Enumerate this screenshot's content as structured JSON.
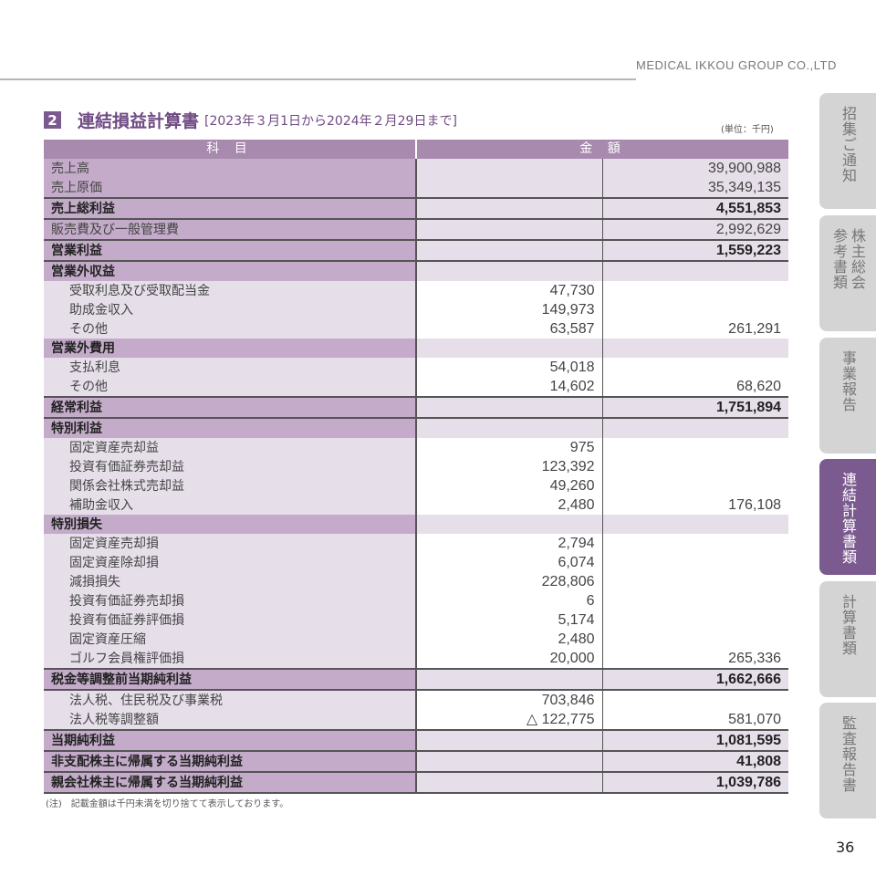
{
  "header": {
    "company": "MEDICAL IKKOU GROUP CO.,LTD"
  },
  "section": {
    "number": "2",
    "title": "連結損益計算書",
    "period": "[2023年３月1日から2024年２月29日まで]",
    "unit": "(単位：千円)"
  },
  "table": {
    "headers": [
      "科 目",
      "金 額"
    ],
    "rows": [
      {
        "type": "top",
        "label": "売上高",
        "mid": "",
        "right": "39,900,988"
      },
      {
        "type": "top",
        "label": "売上原価",
        "mid": "",
        "right": "35,349,135"
      },
      {
        "type": "top bold",
        "label": "売上総利益",
        "mid": "",
        "right": "4,551,853"
      },
      {
        "type": "top",
        "label": "販売費及び一般管理費",
        "mid": "",
        "right": "2,992,629"
      },
      {
        "type": "top bold",
        "label": "営業利益",
        "mid": "",
        "right": "1,559,223"
      },
      {
        "type": "top sec",
        "label": "営業外収益",
        "mid": "",
        "right": ""
      },
      {
        "type": "sub",
        "label": "受取利息及び受取配当金",
        "mid": "47,730",
        "right": ""
      },
      {
        "type": "sub",
        "label": "助成金収入",
        "mid": "149,973",
        "right": ""
      },
      {
        "type": "sub",
        "label": "その他",
        "mid": "63,587",
        "right": "261,291"
      },
      {
        "type": "top sec",
        "label": "営業外費用",
        "mid": "",
        "right": ""
      },
      {
        "type": "sub",
        "label": "支払利息",
        "mid": "54,018",
        "right": ""
      },
      {
        "type": "sub",
        "label": "その他",
        "mid": "14,602",
        "right": "68,620"
      },
      {
        "type": "top bold",
        "label": "経常利益",
        "mid": "",
        "right": "1,751,894"
      },
      {
        "type": "top sec",
        "label": "特別利益",
        "mid": "",
        "right": ""
      },
      {
        "type": "sub",
        "label": "固定資産売却益",
        "mid": "975",
        "right": ""
      },
      {
        "type": "sub",
        "label": "投資有価証券売却益",
        "mid": "123,392",
        "right": ""
      },
      {
        "type": "sub",
        "label": "関係会社株式売却益",
        "mid": "49,260",
        "right": ""
      },
      {
        "type": "sub",
        "label": "補助金収入",
        "mid": "2,480",
        "right": "176,108"
      },
      {
        "type": "top sec",
        "label": "特別損失",
        "mid": "",
        "right": ""
      },
      {
        "type": "sub",
        "label": "固定資産売却損",
        "mid": "2,794",
        "right": ""
      },
      {
        "type": "sub",
        "label": "固定資産除却損",
        "mid": "6,074",
        "right": ""
      },
      {
        "type": "sub",
        "label": "減損損失",
        "mid": "228,806",
        "right": ""
      },
      {
        "type": "sub",
        "label": "投資有価証券売却損",
        "mid": "6",
        "right": ""
      },
      {
        "type": "sub",
        "label": "投資有価証券評価損",
        "mid": "5,174",
        "right": ""
      },
      {
        "type": "sub",
        "label": "固定資産圧縮",
        "mid": "2,480",
        "right": ""
      },
      {
        "type": "sub",
        "label": "ゴルフ会員権評価損",
        "mid": "20,000",
        "right": "265,336"
      },
      {
        "type": "top bold",
        "label": "税金等調整前当期純利益",
        "mid": "",
        "right": "1,662,666"
      },
      {
        "type": "sub",
        "label": "法人税、住民税及び事業税",
        "mid": "703,846",
        "right": ""
      },
      {
        "type": "sub",
        "label": "法人税等調整額",
        "mid": "△ 122,775",
        "right": "581,070"
      },
      {
        "type": "top bold",
        "label": "当期純利益",
        "mid": "",
        "right": "1,081,595"
      },
      {
        "type": "top bold",
        "label": "非支配株主に帰属する当期純利益",
        "mid": "",
        "right": "41,808"
      },
      {
        "type": "top bold",
        "label": "親会社株主に帰属する当期純利益",
        "mid": "",
        "right": "1,039,786"
      }
    ]
  },
  "note": "(注)　記載金額は千円未満を切り捨てて表示しております。",
  "tabs": [
    {
      "label": "招集ご通知",
      "active": false
    },
    {
      "label": "株主総会参考書類",
      "active": false
    },
    {
      "label": "事業報告",
      "active": false
    },
    {
      "label": "連結計算書類",
      "active": true
    },
    {
      "label": "計算書類",
      "active": false
    },
    {
      "label": "監査報告書",
      "active": false
    }
  ],
  "page_number": "36"
}
